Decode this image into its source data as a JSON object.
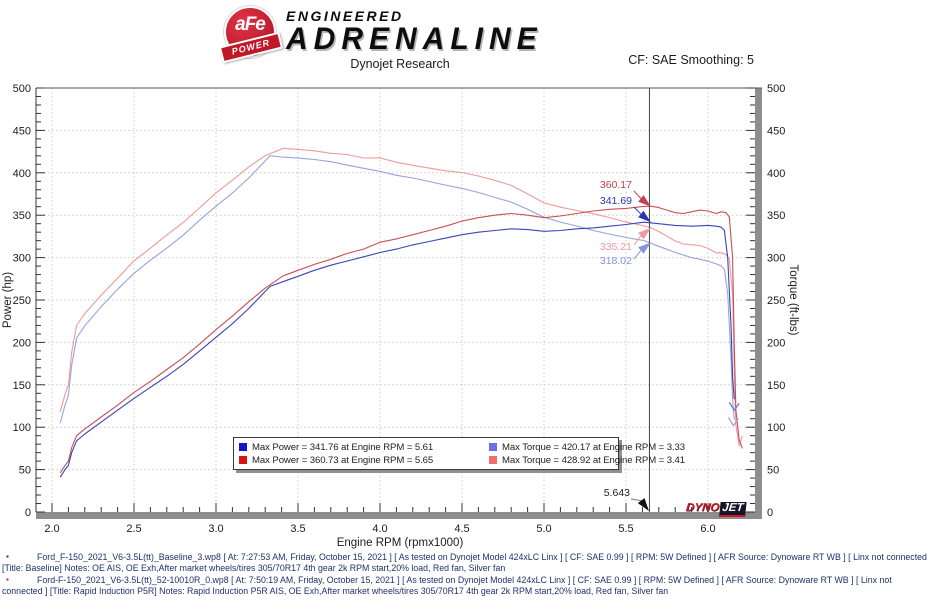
{
  "header": {
    "badge_text": "aFe",
    "badge_sub": "POWER",
    "brand_top": "ENGINEERED",
    "brand_main": "ADRENALINE",
    "title": "Dynojet Research",
    "cf_label": "CF: SAE Smoothing: 5"
  },
  "chart_data": {
    "type": "line",
    "x_axis": {
      "label": "Engine RPM (rpmx1000)",
      "min": 1.9,
      "max": 6.3,
      "major_ticks": [
        2.0,
        2.5,
        3.0,
        3.5,
        4.0,
        4.5,
        5.0,
        5.5,
        6.0
      ],
      "minor_step": 0.1
    },
    "y_axis_left": {
      "label": "Power (hp)",
      "min": 0,
      "max": 500,
      "major_ticks": [
        0,
        50,
        100,
        150,
        200,
        250,
        300,
        350,
        400,
        450,
        500
      ],
      "minor_step": 10
    },
    "y_axis_right": {
      "label": "Torque (ft-lbs)",
      "min": 0,
      "max": 500
    },
    "grid": true,
    "series": [
      {
        "name": "rapid-induction-torque",
        "unit": "ft-lbs",
        "color": "#ee9a9a",
        "points": [
          [
            2.05,
            117.9
          ],
          [
            2.08,
            138.9
          ],
          [
            2.1,
            150.1
          ],
          [
            2.12,
            188.3
          ],
          [
            2.15,
            219.9
          ],
          [
            2.2,
            234.0
          ],
          [
            2.3,
            255.8
          ],
          [
            2.4,
            275.7
          ],
          [
            2.5,
            296.2
          ],
          [
            2.6,
            311.1
          ],
          [
            2.7,
            326.8
          ],
          [
            2.8,
            341.4
          ],
          [
            2.9,
            358.6
          ],
          [
            3.0,
            376.4
          ],
          [
            3.1,
            391.3
          ],
          [
            3.2,
            407.0
          ],
          [
            3.3,
            420.2
          ],
          [
            3.41,
            428.9
          ],
          [
            3.5,
            427.6
          ],
          [
            3.6,
            426.0
          ],
          [
            3.7,
            423.0
          ],
          [
            3.8,
            421.6
          ],
          [
            3.9,
            417.5
          ],
          [
            4.0,
            417.6
          ],
          [
            4.1,
            412.5
          ],
          [
            4.2,
            408.9
          ],
          [
            4.3,
            405.6
          ],
          [
            4.4,
            402.3
          ],
          [
            4.5,
            400.3
          ],
          [
            4.6,
            396.2
          ],
          [
            4.7,
            391.1
          ],
          [
            4.8,
            385.1
          ],
          [
            4.9,
            375.1
          ],
          [
            5.0,
            364.5
          ],
          [
            5.1,
            359.4
          ],
          [
            5.2,
            355.5
          ],
          [
            5.3,
            351.8
          ],
          [
            5.4,
            347.2
          ],
          [
            5.5,
            341.9
          ],
          [
            5.6,
            337.8
          ],
          [
            5.65,
            335.4
          ],
          [
            5.7,
            330.8
          ],
          [
            5.75,
            325.1
          ],
          [
            5.8,
            319.7
          ],
          [
            5.85,
            316.0
          ],
          [
            5.9,
            315.1
          ],
          [
            5.95,
            314.3
          ],
          [
            6.0,
            310.8
          ],
          [
            6.05,
            305.7
          ],
          [
            6.08,
            305.8
          ],
          [
            6.11,
            303.7
          ],
          [
            6.13,
            298.1
          ],
          [
            6.15,
            256.2
          ],
          [
            6.16,
            170.5
          ],
          [
            6.17,
            102.2
          ],
          [
            6.19,
            78.0
          ],
          [
            6.21,
            90.0
          ]
        ]
      },
      {
        "name": "baseline-torque",
        "unit": "ft-lbs",
        "color": "#99a2dd",
        "points": [
          [
            2.05,
            105.0
          ],
          [
            2.08,
            126.3
          ],
          [
            2.1,
            137.6
          ],
          [
            2.12,
            173.4
          ],
          [
            2.15,
            205.2
          ],
          [
            2.2,
            219.7
          ],
          [
            2.3,
            242.1
          ],
          [
            2.4,
            262.6
          ],
          [
            2.5,
            281.5
          ],
          [
            2.6,
            296.9
          ],
          [
            2.7,
            311.2
          ],
          [
            2.8,
            326.4
          ],
          [
            2.9,
            344.1
          ],
          [
            3.0,
            360.6
          ],
          [
            3.1,
            376.1
          ],
          [
            3.2,
            393.9
          ],
          [
            3.33,
            420.2
          ],
          [
            3.4,
            418.6
          ],
          [
            3.5,
            417.3
          ],
          [
            3.6,
            415.7
          ],
          [
            3.7,
            413.1
          ],
          [
            3.8,
            409.1
          ],
          [
            3.9,
            405.3
          ],
          [
            4.0,
            401.8
          ],
          [
            4.1,
            397.1
          ],
          [
            4.2,
            393.9
          ],
          [
            4.3,
            389.7
          ],
          [
            4.4,
            385.5
          ],
          [
            4.5,
            381.6
          ],
          [
            4.6,
            376.8
          ],
          [
            4.7,
            371.0
          ],
          [
            4.8,
            365.5
          ],
          [
            4.9,
            356.9
          ],
          [
            5.0,
            347.7
          ],
          [
            5.1,
            341.9
          ],
          [
            5.2,
            337.3
          ],
          [
            5.3,
            331.9
          ],
          [
            5.4,
            327.7
          ],
          [
            5.5,
            323.7
          ],
          [
            5.61,
            320.0
          ],
          [
            5.7,
            313.3
          ],
          [
            5.8,
            306.1
          ],
          [
            5.9,
            300.0
          ],
          [
            6.0,
            295.9
          ],
          [
            6.05,
            292.6
          ],
          [
            6.08,
            290.3
          ],
          [
            6.1,
            285.9
          ],
          [
            6.12,
            257.5
          ],
          [
            6.14,
            181.5
          ],
          [
            6.15,
            132.9
          ],
          [
            6.16,
            108.9
          ]
        ]
      },
      {
        "name": "rapid-induction-power",
        "unit": "hp",
        "color": "#c75054",
        "points": [
          [
            2.05,
            46
          ],
          [
            2.08,
            55
          ],
          [
            2.1,
            60
          ],
          [
            2.12,
            76
          ],
          [
            2.15,
            90
          ],
          [
            2.2,
            98
          ],
          [
            2.3,
            112
          ],
          [
            2.4,
            126
          ],
          [
            2.5,
            141
          ],
          [
            2.6,
            154
          ],
          [
            2.7,
            168
          ],
          [
            2.8,
            182
          ],
          [
            2.9,
            198
          ],
          [
            3.0,
            215
          ],
          [
            3.1,
            231
          ],
          [
            3.2,
            248
          ],
          [
            3.3,
            264
          ],
          [
            3.41,
            278.5
          ],
          [
            3.5,
            285
          ],
          [
            3.6,
            292
          ],
          [
            3.7,
            298
          ],
          [
            3.8,
            305
          ],
          [
            3.9,
            310
          ],
          [
            4.0,
            318
          ],
          [
            4.1,
            322
          ],
          [
            4.2,
            327
          ],
          [
            4.3,
            332
          ],
          [
            4.4,
            337
          ],
          [
            4.5,
            343
          ],
          [
            4.6,
            347
          ],
          [
            4.7,
            350
          ],
          [
            4.8,
            352
          ],
          [
            4.9,
            350
          ],
          [
            5.0,
            347
          ],
          [
            5.1,
            349
          ],
          [
            5.2,
            352
          ],
          [
            5.3,
            355
          ],
          [
            5.4,
            357
          ],
          [
            5.5,
            358
          ],
          [
            5.6,
            360.2
          ],
          [
            5.65,
            360.7
          ],
          [
            5.7,
            359
          ],
          [
            5.75,
            356
          ],
          [
            5.8,
            353
          ],
          [
            5.85,
            352
          ],
          [
            5.9,
            354
          ],
          [
            5.95,
            356
          ],
          [
            6.0,
            355
          ],
          [
            6.05,
            352
          ],
          [
            6.08,
            354
          ],
          [
            6.11,
            353
          ],
          [
            6.13,
            348
          ],
          [
            6.15,
            300
          ],
          [
            6.16,
            200
          ],
          [
            6.17,
            120
          ],
          [
            6.19,
            85
          ],
          [
            6.21,
            75
          ]
        ]
      },
      {
        "name": "baseline-power",
        "unit": "hp",
        "color": "#3a45b5",
        "points": [
          [
            2.05,
            41
          ],
          [
            2.08,
            50
          ],
          [
            2.1,
            55
          ],
          [
            2.12,
            70
          ],
          [
            2.15,
            84
          ],
          [
            2.2,
            92
          ],
          [
            2.3,
            106
          ],
          [
            2.4,
            120
          ],
          [
            2.5,
            134
          ],
          [
            2.6,
            147
          ],
          [
            2.7,
            160
          ],
          [
            2.8,
            174
          ],
          [
            2.9,
            190
          ],
          [
            3.0,
            206
          ],
          [
            3.1,
            222
          ],
          [
            3.2,
            240
          ],
          [
            3.33,
            266
          ],
          [
            3.4,
            271
          ],
          [
            3.5,
            278
          ],
          [
            3.6,
            285
          ],
          [
            3.7,
            291
          ],
          [
            3.8,
            296
          ],
          [
            3.9,
            301
          ],
          [
            4.0,
            306
          ],
          [
            4.1,
            310
          ],
          [
            4.2,
            315
          ],
          [
            4.3,
            319
          ],
          [
            4.4,
            323
          ],
          [
            4.5,
            327
          ],
          [
            4.6,
            330
          ],
          [
            4.7,
            332
          ],
          [
            4.8,
            334
          ],
          [
            4.9,
            333
          ],
          [
            5.0,
            331
          ],
          [
            5.1,
            332
          ],
          [
            5.2,
            334
          ],
          [
            5.3,
            335
          ],
          [
            5.4,
            337
          ],
          [
            5.5,
            339
          ],
          [
            5.61,
            341.8
          ],
          [
            5.7,
            340
          ],
          [
            5.8,
            338
          ],
          [
            5.9,
            337
          ],
          [
            6.0,
            338
          ],
          [
            6.05,
            337
          ],
          [
            6.08,
            336
          ],
          [
            6.1,
            332
          ],
          [
            6.12,
            300
          ],
          [
            6.14,
            220
          ],
          [
            6.15,
            160
          ],
          [
            6.16,
            133
          ]
        ]
      }
    ],
    "legend": [
      {
        "color": "#1414cc",
        "text": "Max Power = 341.76 at Engine RPM = 5.61"
      },
      {
        "color": "#d81414",
        "text": "Max Power = 360.73 at Engine RPM = 5.65"
      },
      {
        "color": "#6e6eea",
        "text": "Max Torque = 420.17 at Engine RPM = 3.33"
      },
      {
        "color": "#ee6e6e",
        "text": "Max Torque = 428.92 at Engine RPM = 3.41"
      }
    ],
    "max_values": {
      "baseline_power_hp": 341.76,
      "baseline_power_rpm": 5.61,
      "rapid_induction_power_hp": 360.73,
      "rapid_induction_power_rpm": 5.65,
      "baseline_torque_ftlbs": 420.17,
      "baseline_torque_rpm": 3.33,
      "rapid_induction_torque_ftlbs": 428.92,
      "rapid_induction_torque_rpm": 3.41
    },
    "cursor": {
      "rpm": 5.643,
      "label": "5.643",
      "values": [
        {
          "text": "360.17",
          "value": 360.17,
          "color": "#c5404e",
          "label_top": 179,
          "dir": "down",
          "tail_x": 634,
          "tail_y": 191
        },
        {
          "text": "341.69",
          "value": 341.69,
          "color": "#2a35b8",
          "label_top": 195,
          "dir": "down",
          "tail_x": 634,
          "tail_y": 207
        },
        {
          "text": "335.21",
          "value": 335.21,
          "color": "#ef97a3",
          "label_top": 241,
          "dir": "up",
          "tail_x": 634,
          "tail_y": 245
        },
        {
          "text": "318.02",
          "value": 318.02,
          "color": "#8994de",
          "label_top": 255,
          "dir": "up",
          "tail_x": 634,
          "tail_y": 259
        }
      ]
    },
    "end_markers": [
      {
        "rpm": 6.16,
        "value": 120,
        "color": "#6e79e6"
      },
      {
        "rpm": 6.155,
        "value": 102,
        "color": "#9aa3de"
      }
    ]
  },
  "watermark": {
    "dyno": "DYNO",
    "jet": "JET"
  },
  "footer": {
    "lines": [
      {
        "bullet": "#2222cc",
        "text": "Ford_F-150_2021_V6-3.5L(tt)_Baseline_3.wp8 [ At: 7:27:53 AM, Friday, October 15, 2021 ] [ As tested on Dynojet Model 424xLC Linx ] [ CF: SAE 0.99 ] [ RPM: 5W Defined ] [ AFR Source: Dynoware RT WB ] [ Linx not connected"
      },
      {
        "bullet": "",
        "text": "[Title: Baseline]  Notes: OE AIS, OE Exh,After market wheels/tires 305/70R17 4th gear 2k RPM start,20% load, Red fan, Silver fan"
      },
      {
        "bullet": "#cc2222",
        "text": "Ford-F-150_2021_V6-3.5L(tt)_52-10010R_0.wp8 [ At: 7:50:19 AM, Friday, October 15, 2021 ] [ As tested on Dynojet Model 424xLC Linx ] [ CF: SAE 0.99 ] [ RPM: 5W Defined ] [ AFR Source: Dynoware RT WB ] [ Linx not"
      },
      {
        "bullet": "",
        "text": "connected ] [Title: Rapid Induction P5R]  Notes: Rapid Induction P5R AIS, OE Exh,After market wheels/tires 305/70R17 4th gear 2k RPM start,20% load, Red fan, Silver fan"
      }
    ]
  }
}
